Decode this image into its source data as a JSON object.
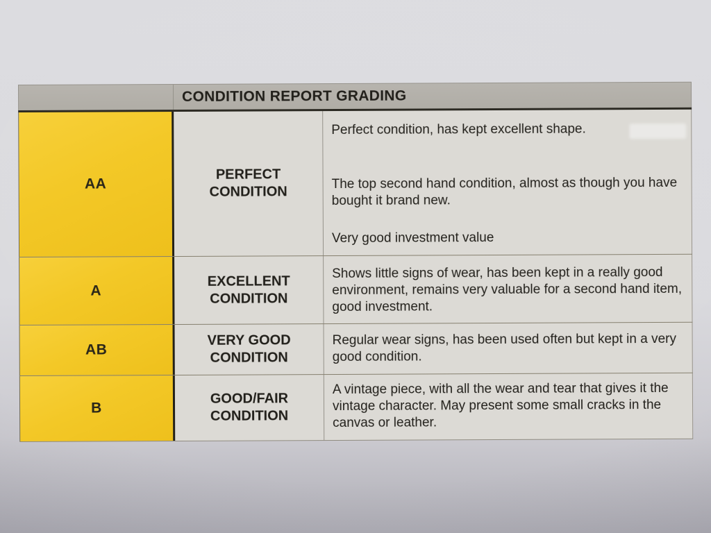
{
  "table": {
    "title": "CONDITION REPORT GRADING",
    "rows": [
      {
        "grade": "AA",
        "label": "PERFECT CONDITION",
        "paragraphs": [
          "Perfect condition, has kept excellent shape.",
          "The top second hand condition, almost as though you have bought it brand new.",
          "Very good investment value"
        ]
      },
      {
        "grade": "A",
        "label": "EXCELLENT CONDITION",
        "paragraphs": [
          "Shows little signs of wear, has been kept in a really good environment, remains very valuable for a second hand item, good investment."
        ]
      },
      {
        "grade": "AB",
        "label": "VERY GOOD CONDITION",
        "paragraphs": [
          "Regular wear signs, has been used often but kept in a very good condition."
        ]
      },
      {
        "grade": "B",
        "label": "GOOD/FAIR CONDITION",
        "paragraphs": [
          "A vintage piece, with all the wear and tear that gives it the vintage character. May present some small cracks in the canvas or leather."
        ]
      }
    ],
    "colors": {
      "grade_column_yellow": "#f2c726",
      "header_gray": "#b4b1aa",
      "cell_gray": "#dcdad5",
      "paper": "#d9d9dd",
      "text": "#1f1d18",
      "dark_border": "#2c2a23"
    }
  }
}
